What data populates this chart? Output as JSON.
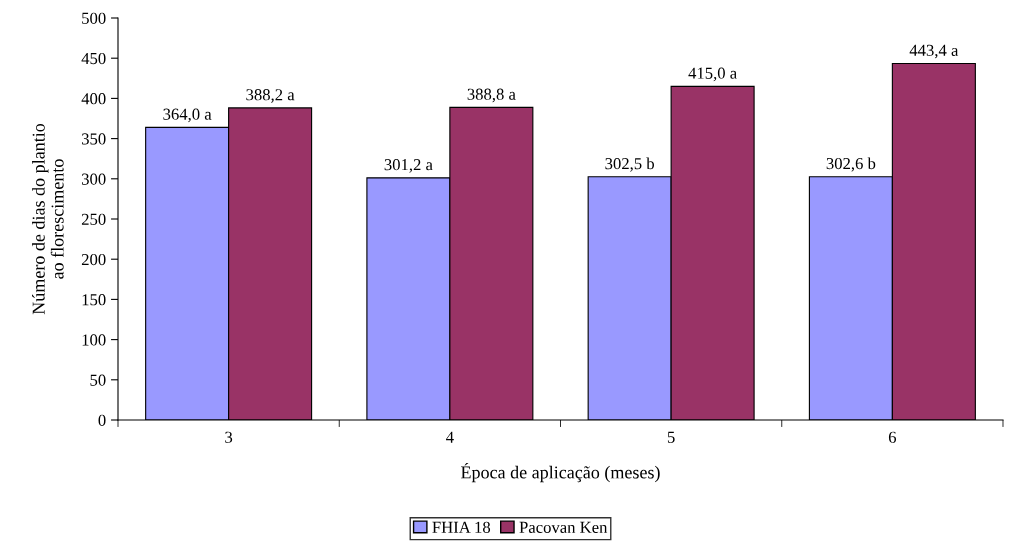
{
  "chart_data": {
    "type": "bar",
    "xlabel": "Época de aplicação (meses)",
    "ylabel": "Número de dias do plantio\nao florescimento",
    "categories": [
      "3",
      "4",
      "5",
      "6"
    ],
    "series": [
      {
        "name": "FHIA 18",
        "color": "#9999ff",
        "values": [
          364.0,
          301.2,
          302.5,
          302.6
        ],
        "value_labels": [
          "364,0 a",
          "301,2 a",
          "302,5 b",
          "302,6 b"
        ]
      },
      {
        "name": "Pacovan Ken",
        "color": "#993366",
        "values": [
          388.2,
          388.8,
          415.0,
          443.4
        ],
        "value_labels": [
          "388,2 a",
          "388,8 a",
          "415,0 a",
          "443,4 a"
        ]
      }
    ],
    "ylim": [
      0,
      500
    ],
    "yticks": [
      0,
      50,
      100,
      150,
      200,
      250,
      300,
      350,
      400,
      450,
      500
    ],
    "legend": "bottom",
    "grid": false
  }
}
